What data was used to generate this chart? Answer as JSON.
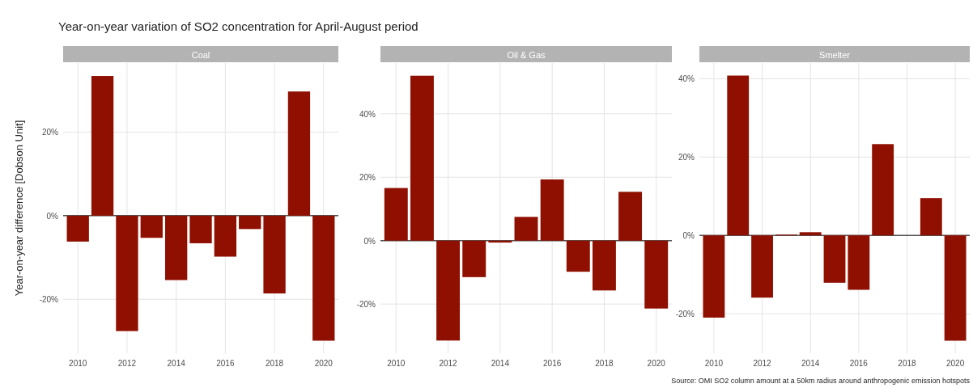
{
  "chart_data": [
    {
      "type": "bar",
      "title": "Year-on-year variation of SO2 concentration for April-August period",
      "subtitle": "Coal",
      "ylabel": "Year-on-year difference [Dobson Unit]",
      "x": [
        2010,
        2011,
        2012,
        2013,
        2014,
        2015,
        2016,
        2017,
        2018,
        2019,
        2020
      ],
      "values": [
        -6.2,
        33.4,
        -27.6,
        -5.3,
        -15.4,
        -6.6,
        -9.8,
        -3.2,
        -18.6,
        29.7,
        -29.9
      ],
      "color": "#8f1000",
      "xlim": [
        2009.4,
        2020.6
      ],
      "xticks": [
        2010,
        2012,
        2014,
        2016,
        2018,
        2020
      ],
      "ylim": [
        -32.9,
        36.5
      ],
      "yticks": [
        {
          "value": -20,
          "label": "-20%"
        },
        {
          "value": 0,
          "label": "0%"
        },
        {
          "value": 20,
          "label": "20%"
        }
      ],
      "grid": true,
      "ref_lines": [
        {
          "axis": "y",
          "value": 0,
          "color": "#555555"
        }
      ]
    },
    {
      "type": "bar",
      "subtitle": "Oil & Gas",
      "x": [
        2010,
        2011,
        2012,
        2013,
        2014,
        2015,
        2016,
        2017,
        2018,
        2019,
        2020
      ],
      "values": [
        16.6,
        52.0,
        -31.5,
        -11.5,
        -0.6,
        7.5,
        19.3,
        -9.8,
        -15.7,
        15.4,
        -21.4
      ],
      "color": "#8f1000",
      "xlim": [
        2009.4,
        2020.6
      ],
      "xticks": [
        2010,
        2012,
        2014,
        2016,
        2018,
        2020
      ],
      "ylim": [
        -35.5,
        56
      ],
      "yticks": [
        {
          "value": -20,
          "label": "-20%"
        },
        {
          "value": 0,
          "label": "0%"
        },
        {
          "value": 20,
          "label": "20%"
        },
        {
          "value": 40,
          "label": "40%"
        }
      ],
      "grid": true,
      "ref_lines": [
        {
          "axis": "y",
          "value": 0,
          "color": "#555555"
        }
      ]
    },
    {
      "type": "bar",
      "subtitle": "Smelter",
      "x": [
        2010,
        2011,
        2012,
        2013,
        2014,
        2015,
        2016,
        2017,
        2018,
        2019,
        2020
      ],
      "values": [
        -21.0,
        40.8,
        -15.9,
        0.2,
        0.8,
        -12.1,
        -13.9,
        23.3,
        0,
        9.5,
        -26.9
      ],
      "color": "#8f1000",
      "xlim": [
        2009.4,
        2020.6
      ],
      "xticks": [
        2010,
        2012,
        2014,
        2016,
        2018,
        2020
      ],
      "ylim": [
        -30.1,
        44
      ],
      "yticks": [
        {
          "value": -20,
          "label": "-20%"
        },
        {
          "value": 0,
          "label": "0%"
        },
        {
          "value": 20,
          "label": "20%"
        },
        {
          "value": 40,
          "label": "40%"
        }
      ],
      "grid": true,
      "ref_lines": [
        {
          "axis": "y",
          "value": 0,
          "color": "#555555"
        }
      ],
      "annotations": [
        "Source: OMI SO2 column amount at a 50km radius around anthropogenic emission hotspots"
      ]
    }
  ]
}
